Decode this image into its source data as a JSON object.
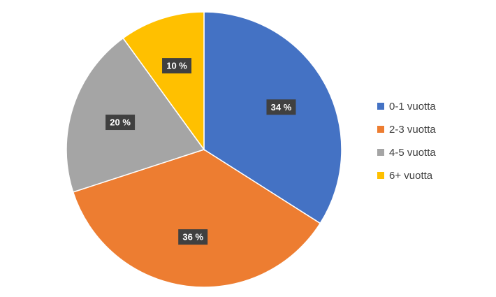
{
  "chart_data": {
    "type": "pie",
    "categories": [
      "0-1 vuotta",
      "2-3 vuotta",
      "4-5 vuotta",
      "6+ vuotta"
    ],
    "values": [
      34,
      36,
      20,
      10
    ],
    "labels": [
      "34 %",
      "36 %",
      "20 %",
      "10 %"
    ],
    "colors": [
      "#4472C4",
      "#ED7D31",
      "#A5A5A5",
      "#FFC000"
    ],
    "legend_position": "right",
    "start_angle": "12 o'clock",
    "direction": "clockwise",
    "data_label_style": "dark box, white bold text"
  }
}
